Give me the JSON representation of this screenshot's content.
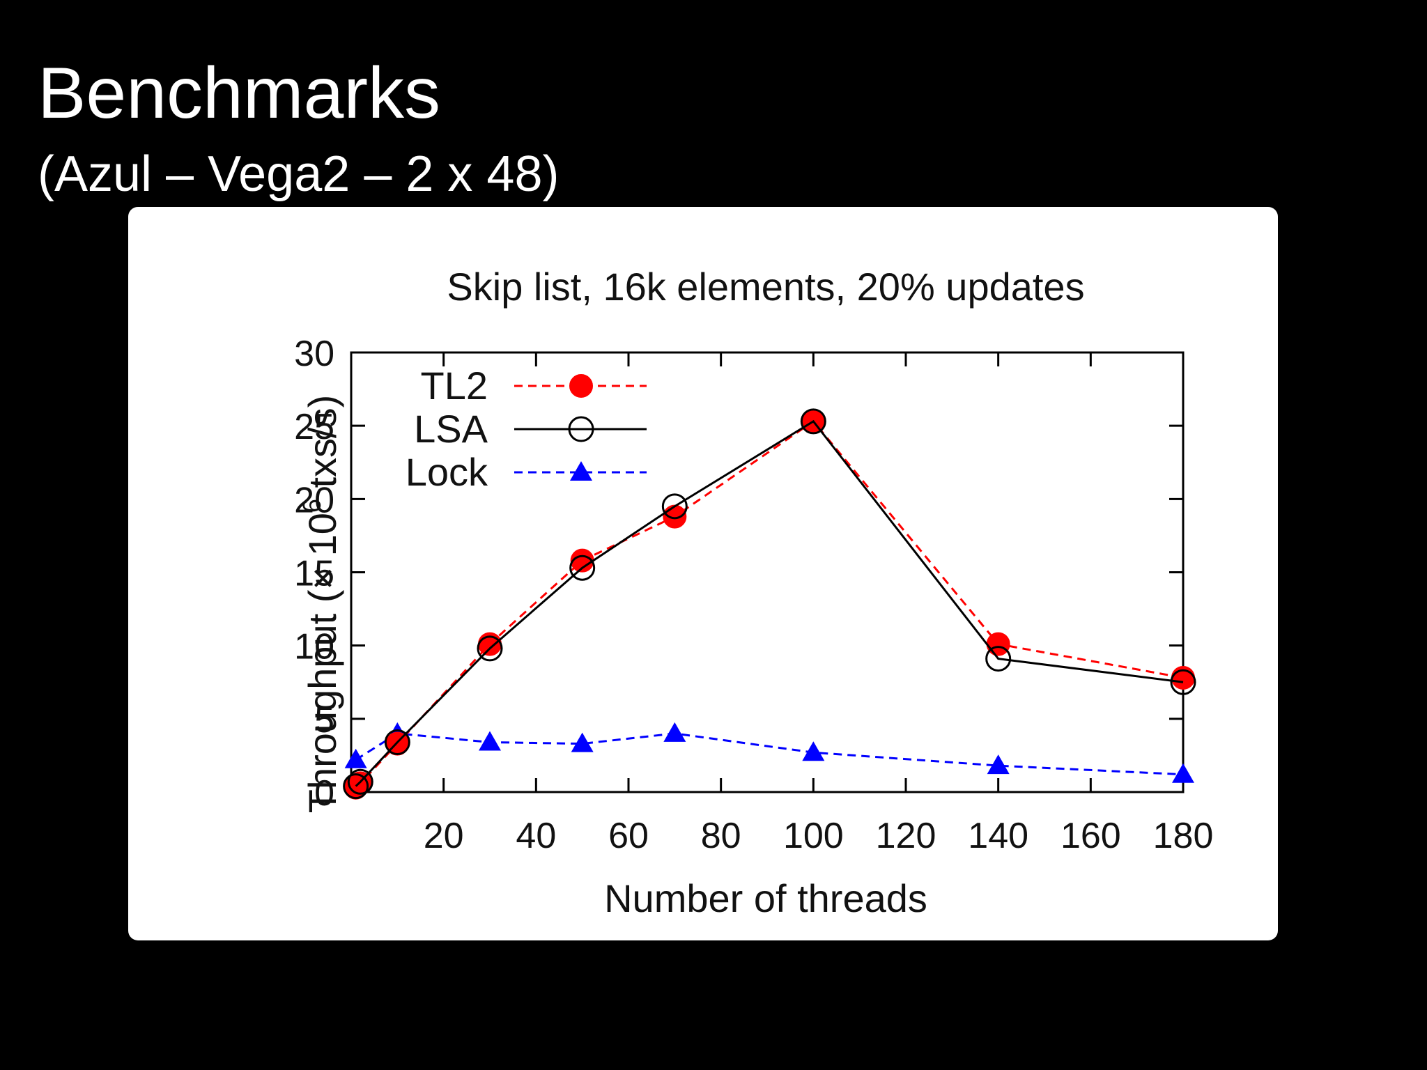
{
  "slide": {
    "title": "Benchmarks",
    "subtitle": "(Azul – Vega2 – 2 x 48)"
  },
  "chart_data": {
    "type": "line",
    "title": "Skip list, 16k elements, 20% updates",
    "xlabel": "Number of threads",
    "ylabel": "Throughput (× 10⁶ txs/s)",
    "ylabel_parts": {
      "prefix": "Throughput (× 10",
      "superscript": "6",
      "suffix": " txs/s)"
    },
    "xlim": [
      0,
      180
    ],
    "ylim": [
      0,
      30
    ],
    "xticks": [
      20,
      40,
      60,
      80,
      100,
      120,
      140,
      160,
      180
    ],
    "yticks": [
      0,
      5,
      10,
      15,
      20,
      25,
      30
    ],
    "grid": false,
    "legend_position": "top-left",
    "series": [
      {
        "name": "TL2",
        "color": "#ff0000",
        "line": "dashed",
        "marker": "filled-circle",
        "x": [
          1,
          2,
          10,
          30,
          50,
          70,
          100,
          140,
          180
        ],
        "y": [
          0.3,
          0.6,
          3.3,
          10.1,
          15.8,
          18.8,
          25.3,
          10.1,
          7.8
        ]
      },
      {
        "name": "LSA",
        "color": "#000000",
        "line": "solid",
        "marker": "open-circle",
        "x": [
          1,
          2,
          10,
          30,
          50,
          70,
          100,
          140,
          180
        ],
        "y": [
          0.4,
          0.7,
          3.4,
          9.8,
          15.3,
          19.5,
          25.3,
          9.1,
          7.5
        ]
      },
      {
        "name": "Lock",
        "color": "#0000ff",
        "line": "dashed",
        "marker": "filled-triangle",
        "x": [
          1,
          10,
          30,
          50,
          70,
          100,
          140,
          180
        ],
        "y": [
          2.2,
          4.0,
          3.4,
          3.3,
          4.0,
          2.7,
          1.8,
          1.2
        ]
      }
    ]
  }
}
